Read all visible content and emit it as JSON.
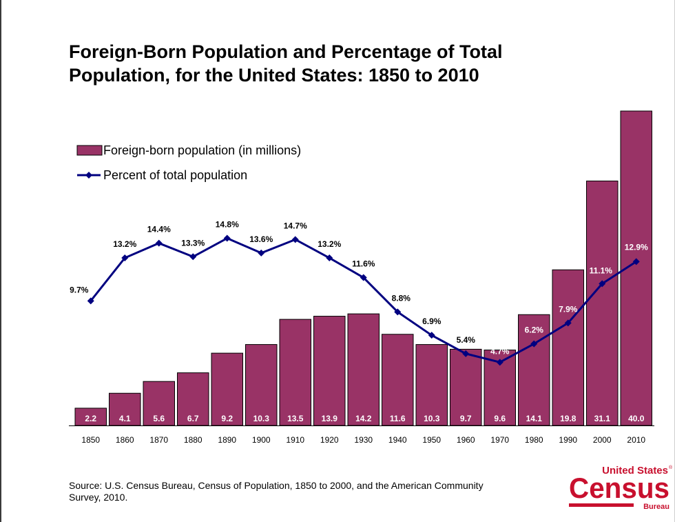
{
  "title": {
    "line1": "Foreign-Born Population and Percentage of Total",
    "line2": "Population, for the United States: 1850 to 2010"
  },
  "chart_data": {
    "type": "bar",
    "categories": [
      "1850",
      "1860",
      "1870",
      "1880",
      "1890",
      "1900",
      "1910",
      "1920",
      "1930",
      "1940",
      "1950",
      "1960",
      "1970",
      "1980",
      "1990",
      "2000",
      "2010"
    ],
    "series": [
      {
        "name": "Foreign-born population (in millions)",
        "type": "bar",
        "values": [
          2.2,
          4.1,
          5.6,
          6.7,
          9.2,
          10.3,
          13.5,
          13.9,
          14.2,
          11.6,
          10.3,
          9.7,
          9.6,
          14.1,
          19.8,
          31.1,
          40.0
        ],
        "labels": [
          "2.2",
          "4.1",
          "5.6",
          "6.7",
          "9.2",
          "10.3",
          "13.5",
          "13.9",
          "14.2",
          "11.6",
          "10.3",
          "9.7",
          "9.6",
          "14.1",
          "19.8",
          "31.1",
          "40.0"
        ],
        "color": "#993366"
      },
      {
        "name": "Percent of total population",
        "type": "line",
        "values": [
          9.7,
          13.2,
          14.4,
          13.3,
          14.8,
          13.6,
          14.7,
          13.2,
          11.6,
          8.8,
          6.9,
          5.4,
          4.7,
          6.2,
          7.9,
          11.1,
          12.9
        ],
        "labels": [
          "9.7%",
          "13.2%",
          "14.4%",
          "13.3%",
          "14.8%",
          "13.6%",
          "14.7%",
          "13.2%",
          "11.6%",
          "8.8%",
          "6.9%",
          "5.4%",
          "4.7%",
          "6.2%",
          "7.9%",
          "11.1%",
          "12.9%"
        ],
        "color": "#000080"
      }
    ],
    "legend_position": "top-left",
    "grid": false
  },
  "source": {
    "line1": "Source: U.S. Census Bureau, Census of Population, 1850 to 2000, and the American Community",
    "line2": "Survey, 2010."
  },
  "logo": {
    "top": "United States",
    "tm": "®",
    "main": "Census",
    "bottom": "Bureau",
    "color": "#c8102e"
  }
}
